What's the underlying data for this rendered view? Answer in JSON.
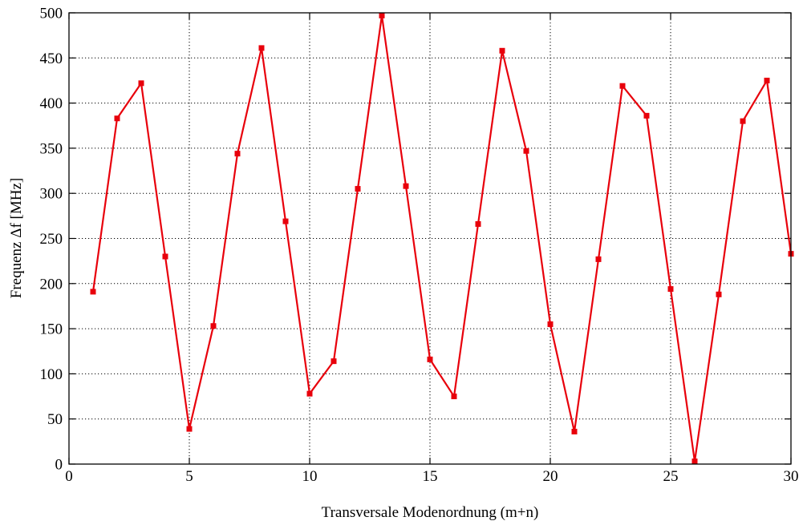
{
  "chart_data": {
    "type": "line",
    "title": "",
    "xlabel": "Transversale Modenordnung (m+n)",
    "ylabel": "Frequenz Δf [MHz]",
    "xlim": [
      0,
      30
    ],
    "ylim": [
      0,
      500
    ],
    "xticks": [
      0,
      5,
      10,
      15,
      20,
      25,
      30
    ],
    "yticks": [
      0,
      50,
      100,
      150,
      200,
      250,
      300,
      350,
      400,
      450,
      500
    ],
    "grid": true,
    "legend": "none",
    "series": [
      {
        "color": "#e8000b",
        "marker": "square",
        "x": [
          1,
          2,
          3,
          4,
          5,
          6,
          7,
          8,
          9,
          10,
          11,
          12,
          13,
          14,
          15,
          16,
          17,
          18,
          19,
          20,
          21,
          22,
          23,
          24,
          25,
          26,
          27,
          28,
          29,
          30
        ],
        "y": [
          191,
          383,
          422,
          230,
          39,
          153,
          344,
          461,
          269,
          78,
          114,
          305,
          497,
          308,
          116,
          75,
          266,
          458,
          347,
          155,
          36,
          227,
          419,
          386,
          194,
          3,
          188,
          380,
          425,
          233
        ]
      }
    ]
  }
}
